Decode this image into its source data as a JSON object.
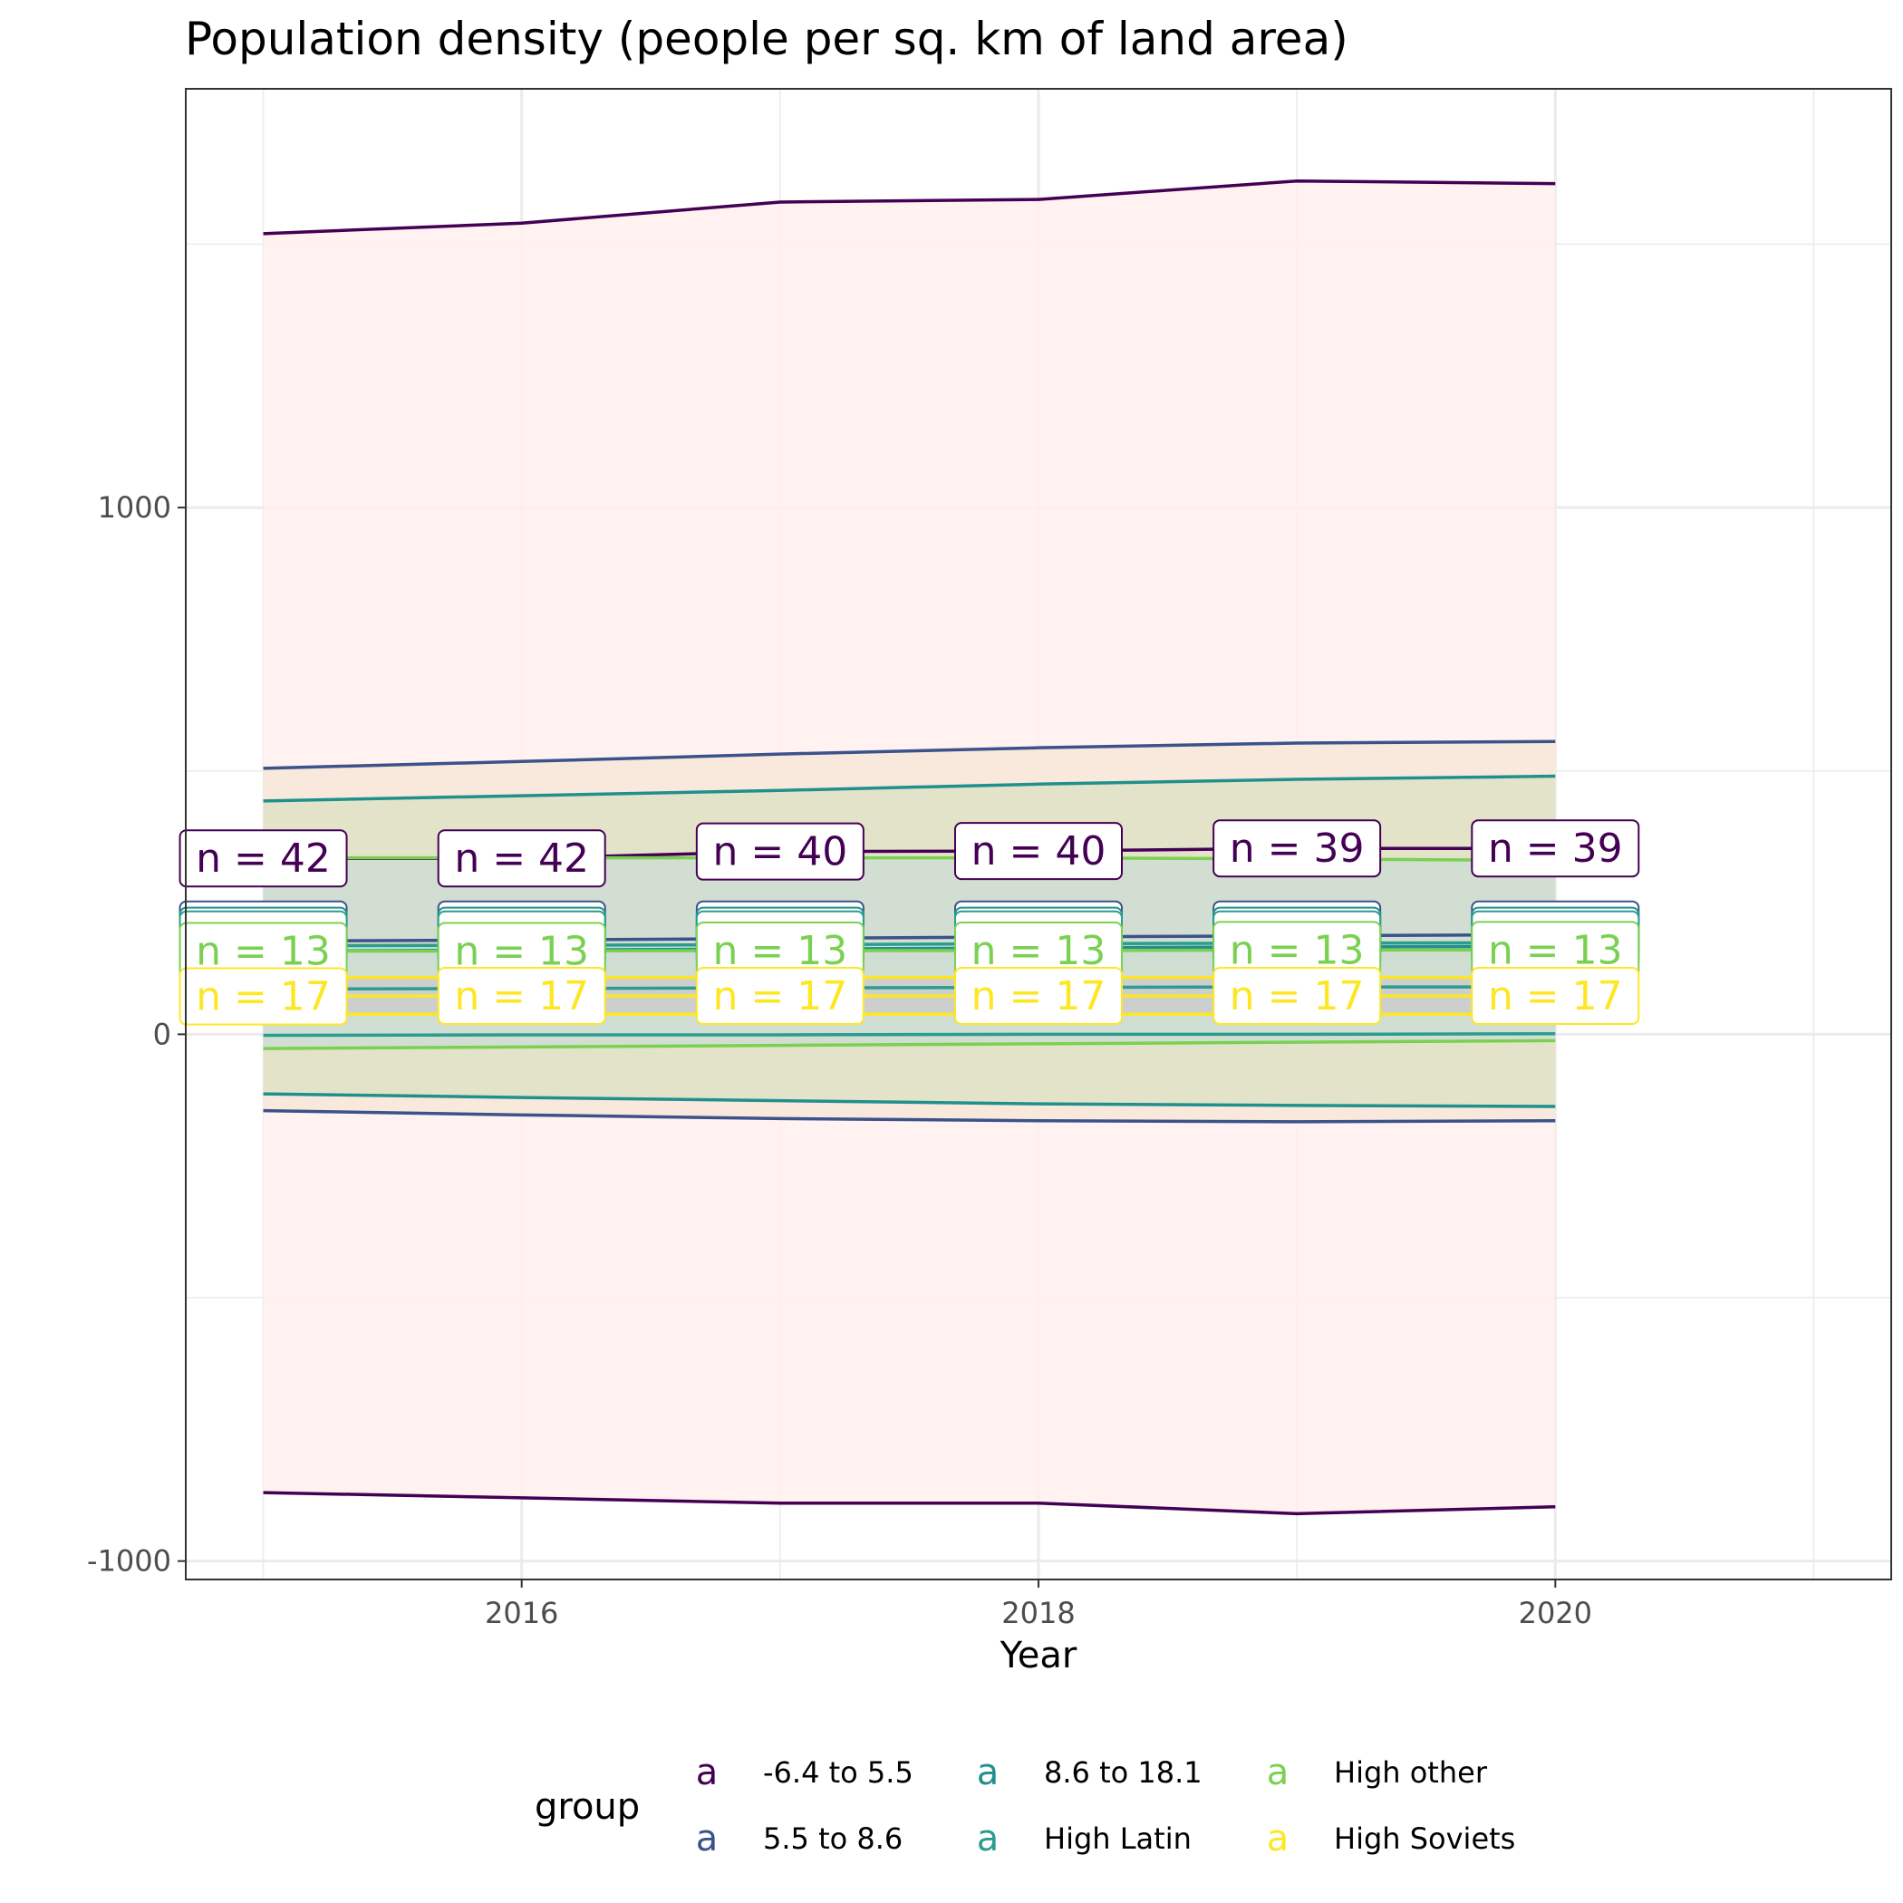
{
  "chart_data": {
    "type": "area",
    "title": "Population density (people per sq. km of land area)",
    "xlabel": "Year",
    "ylabel": "",
    "x": [
      2015,
      2016,
      2017,
      2018,
      2019,
      2020
    ],
    "xlim": [
      2014.7,
      2021.3
    ],
    "ylim": [
      -1035,
      1795
    ],
    "x_ticks": [
      2016,
      2018,
      2020
    ],
    "y_ticks": [
      -1000,
      0,
      1000
    ],
    "y_tick_labels": [
      "-1000",
      "0",
      "1000"
    ],
    "grid": true,
    "legend": {
      "title": "group",
      "position": "bottom",
      "key_glyph": "a"
    },
    "series": [
      {
        "name": "-6.4 to 5.5",
        "color": "#440154",
        "ribbon_color": "#fff0ef",
        "mean": [
          334,
          334,
          347,
          348,
          353,
          353
        ],
        "upper": [
          1520,
          1540,
          1580,
          1585,
          1620,
          1615
        ],
        "lower": [
          -870,
          -880,
          -890,
          -890,
          -910,
          -897
        ],
        "n_labels": [
          "n = 42",
          "n = 42",
          "n = 40",
          "n = 40",
          "n = 39",
          "n = 39"
        ]
      },
      {
        "name": "5.5 to 8.6",
        "color": "#3b528b",
        "ribbon_color": "#f7e7d8",
        "mean": [
          177,
          179,
          182,
          185,
          187,
          189
        ],
        "upper": [
          505,
          518,
          532,
          544,
          553,
          556
        ],
        "lower": [
          -145,
          -153,
          -160,
          -164,
          -166,
          -164
        ],
        "n_labels": []
      },
      {
        "name": "8.6 to 18.1",
        "color": "#21908d",
        "ribbon_color": "#dfe2c6",
        "mean": [
          158,
          160,
          162,
          164,
          166,
          167
        ],
        "upper": [
          443,
          453,
          463,
          475,
          484,
          490
        ],
        "lower": [
          -113,
          -120,
          -126,
          -132,
          -135,
          -137
        ],
        "n_labels": []
      },
      {
        "name": "High Latin",
        "color": "#2a9d8f",
        "ribbon_color": "#cfddd3",
        "mean": [
          86,
          87,
          88,
          89,
          90,
          90
        ],
        "upper": [
          168,
          169,
          170,
          172,
          173,
          174
        ],
        "lower": [
          -2,
          -1,
          -1,
          0,
          0,
          1
        ],
        "n_labels": []
      },
      {
        "name": "High other",
        "color": "#7ad151",
        "ribbon_color": "#d0ddd3",
        "mean": [
          158,
          158,
          159,
          159,
          160,
          160
        ],
        "upper": [
          335,
          335,
          335,
          335,
          333,
          330
        ],
        "lower": [
          -27,
          -24,
          -21,
          -18,
          -15,
          -12
        ],
        "n_labels": [
          "n = 13",
          "n = 13",
          "n = 13",
          "n = 13",
          "n = 13",
          "n = 13"
        ]
      },
      {
        "name": "High Soviets",
        "color": "#fde725",
        "ribbon_color": "#cccccc",
        "mean": [
          72,
          73,
          73,
          73,
          73,
          73
        ],
        "upper": [
          108,
          108,
          108,
          108,
          108,
          108
        ],
        "lower": [
          38,
          38,
          38,
          38,
          38,
          38
        ],
        "n_labels": [
          "n = 17",
          "n = 17",
          "n = 17",
          "n = 17",
          "n = 17",
          "n = 17"
        ]
      }
    ],
    "hidden_label_rows": [
      {
        "color": "#3b528b",
        "value": 199
      },
      {
        "color": "#21908d",
        "value": 187
      },
      {
        "color": "#2a9d8f",
        "value": 180
      }
    ]
  }
}
